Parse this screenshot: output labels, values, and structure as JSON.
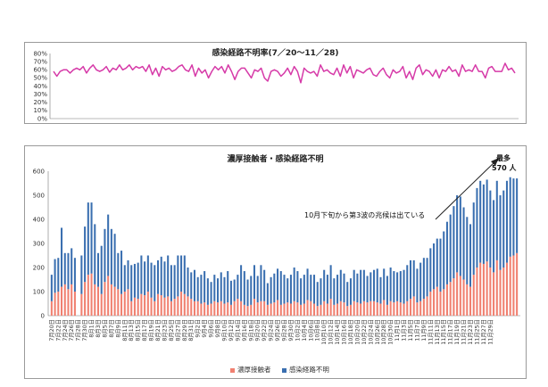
{
  "chart_data": [
    {
      "type": "line",
      "title": "感染経路不明率(7／20～11／28)",
      "ylim": [
        0,
        80
      ],
      "y_ticks": [
        "0%",
        "10%",
        "20%",
        "30%",
        "40%",
        "50%",
        "60%",
        "70%",
        "80%"
      ],
      "series": [
        {
          "values": [
            58,
            52,
            58,
            60,
            60,
            56,
            60,
            62,
            60,
            64,
            56,
            62,
            66,
            60,
            58,
            60,
            64,
            57,
            62,
            60,
            66,
            60,
            62,
            66,
            60,
            64,
            62,
            64,
            58,
            66,
            54,
            62,
            52,
            64,
            60,
            62,
            58,
            60,
            64,
            66,
            60,
            58,
            66,
            52,
            62,
            56,
            60,
            50,
            58,
            64,
            60,
            64,
            56,
            66,
            58,
            48,
            58,
            62,
            62,
            56,
            50,
            60,
            58,
            62,
            50,
            46,
            58,
            60,
            58,
            52,
            56,
            62,
            54,
            64,
            58,
            44,
            62,
            58,
            56,
            58,
            52,
            66,
            58,
            60,
            56,
            54,
            62,
            52,
            66,
            56,
            64,
            50,
            60,
            58,
            56,
            60,
            62,
            54,
            52,
            58,
            62,
            54,
            50,
            60,
            56,
            58,
            64,
            50,
            58,
            48,
            62,
            66,
            54,
            60,
            58,
            52,
            60,
            50,
            60,
            58,
            64,
            58,
            60,
            52,
            66,
            58,
            60,
            58,
            66,
            58,
            58,
            50,
            62,
            64,
            58,
            58,
            58,
            68,
            60,
            62,
            56
          ],
          "color": "#d63aa8"
        }
      ]
    },
    {
      "type": "bar",
      "title": "濃厚接触者・感染経路不明",
      "ylim": [
        0,
        600
      ],
      "y_ticks": [
        "0",
        "100",
        "200",
        "300",
        "400",
        "500",
        "600"
      ],
      "x_tick_labels": [
        "7月20日",
        "7月22日",
        "7月24日",
        "7月26日",
        "7月28日",
        "7月30日",
        "8月1日",
        "8月3日",
        "8月5日",
        "8月7日",
        "8月9日",
        "8月11日",
        "8月13日",
        "8月15日",
        "8月17日",
        "8月19日",
        "8月21日",
        "8月23日",
        "8月25日",
        "8月27日",
        "8月29日",
        "8月31日",
        "9月2日",
        "9月4日",
        "9月6日",
        "9月8日",
        "9月10日",
        "9月12日",
        "9月14日",
        "9月16日",
        "9月18日",
        "9月20日",
        "9月22日",
        "9月24日",
        "9月26日",
        "9月28日",
        "9月30日",
        "10月2日",
        "10月4日",
        "10月6日",
        "10月8日",
        "10月10日",
        "10月12日",
        "10月14日",
        "10月16日",
        "10月18日",
        "10月20日",
        "10月22日",
        "10月24日",
        "10月26日",
        "10月28日",
        "10月30日",
        "11月1日",
        "11月3日",
        "11月5日",
        "11月7日",
        "11月9日",
        "11月11日",
        "11月13日",
        "11月15日",
        "11月17日",
        "11月19日",
        "11月21日",
        "11月23日",
        "11月25日",
        "11月27日",
        "11月29日"
      ],
      "series": [
        {
          "name": "濃厚接触者",
          "color": "#f08070",
          "values": [
            60,
            95,
            100,
            120,
            130,
            110,
            130,
            100,
            0,
            90,
            140,
            170,
            175,
            130,
            120,
            90,
            140,
            165,
            130,
            120,
            110,
            90,
            100,
            110,
            60,
            75,
            70,
            90,
            85,
            100,
            75,
            60,
            90,
            85,
            75,
            80,
            60,
            70,
            80,
            100,
            90,
            80,
            70,
            60,
            60,
            50,
            55,
            45,
            50,
            60,
            55,
            60,
            50,
            55,
            45,
            60,
            70,
            60,
            45,
            40,
            45,
            70,
            55,
            60,
            60,
            45,
            50,
            55,
            65,
            45,
            50,
            55,
            50,
            60,
            55,
            45,
            50,
            65,
            60,
            50,
            40,
            45,
            60,
            50,
            70,
            45,
            50,
            60,
            55,
            40,
            45,
            60,
            55,
            50,
            60,
            55,
            60,
            60,
            55,
            50,
            65,
            45,
            60,
            55,
            60,
            55,
            50,
            60,
            70,
            80,
            55,
            60,
            70,
            80,
            100,
            110,
            120,
            100,
            110,
            130,
            140,
            155,
            180,
            165,
            150,
            130,
            120,
            170,
            200,
            220,
            215,
            225,
            200,
            180,
            230,
            190,
            200,
            220,
            245,
            250,
            260
          ]
        },
        {
          "name": "感染経路不明",
          "color": "#3a6fb0",
          "values": [
            110,
            140,
            140,
            245,
            130,
            150,
            150,
            140,
            0,
            160,
            230,
            300,
            295,
            250,
            140,
            200,
            220,
            255,
            230,
            220,
            150,
            180,
            110,
            120,
            150,
            140,
            150,
            160,
            140,
            150,
            145,
            150,
            140,
            160,
            150,
            170,
            150,
            140,
            170,
            150,
            160,
            120,
            110,
            130,
            100,
            120,
            130,
            110,
            90,
            110,
            100,
            120,
            110,
            130,
            100,
            90,
            100,
            150,
            140,
            110,
            120,
            140,
            110,
            150,
            130,
            90,
            110,
            120,
            130,
            140,
            120,
            100,
            120,
            140,
            130,
            110,
            120,
            130,
            110,
            120,
            100,
            110,
            130,
            120,
            140,
            110,
            120,
            130,
            120,
            100,
            110,
            130,
            120,
            140,
            130,
            110,
            120,
            130,
            140,
            110,
            130,
            120,
            140,
            130,
            120,
            130,
            140,
            150,
            160,
            150,
            140,
            160,
            170,
            160,
            180,
            190,
            200,
            220,
            240,
            260,
            280,
            300,
            320,
            330,
            300,
            280,
            260,
            300,
            330,
            340,
            330,
            340,
            320,
            300,
            330,
            310,
            320,
            340,
            330,
            320,
            310
          ]
        }
      ],
      "annotation": "10月下旬から第3波の兆候は出ている",
      "peak_label_1": "最多",
      "peak_label_2": "570 人"
    }
  ]
}
